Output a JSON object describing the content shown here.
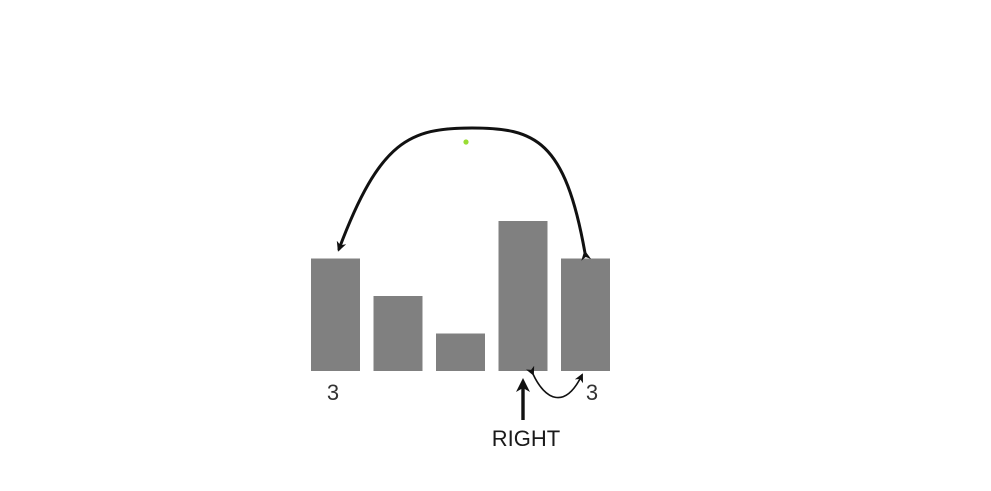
{
  "bars": {
    "heights": [
      3,
      2,
      1,
      4,
      3
    ],
    "color": "#808080"
  },
  "labels": {
    "left_value": "3",
    "right_value": "3"
  },
  "pointer": {
    "label": "RIGHT",
    "target_bar_index": 3
  },
  "swap_arc": {
    "from_bar_index": 0,
    "to_bar_index": 4
  },
  "compare_arc": {
    "from_bar_index": 3,
    "to_bar_index": 4
  },
  "marker": {
    "color": "#99dd33"
  },
  "colors": {
    "arrow": "#111111",
    "background": "#ffffff"
  }
}
